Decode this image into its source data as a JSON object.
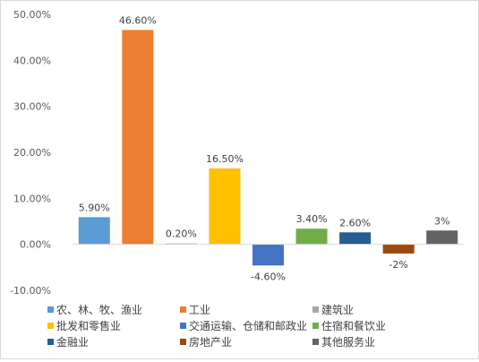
{
  "chart_data": {
    "type": "bar",
    "categories": [
      "农、林、牧、渔业",
      "工业",
      "建筑业",
      "批发和零售业",
      "交通运输、仓储和邮政业",
      "住宿和餐饮业",
      "金融业",
      "房地产业",
      "其他服务业"
    ],
    "values": [
      5.9,
      46.6,
      0.2,
      16.5,
      -4.6,
      3.4,
      2.6,
      -2,
      3
    ],
    "data_labels": [
      "5.90%",
      "46.60%",
      "0.20%",
      "16.50%",
      "-4.60%",
      "3.40%",
      "2.60%",
      "-2%",
      "3%"
    ],
    "colors": [
      "#5b9bd5",
      "#ed7d31",
      "#a5a5a5",
      "#ffc000",
      "#4472c4",
      "#70ad47",
      "#255e91",
      "#9e480e",
      "#636363"
    ],
    "ylim": [
      -10,
      50
    ],
    "y_ticks": [
      50,
      40,
      30,
      20,
      10,
      0,
      -10
    ],
    "y_tick_labels": [
      "50.00%",
      "40.00%",
      "30.00%",
      "20.00%",
      "10.00%",
      "0.00%",
      "-10.00%"
    ],
    "grid": false,
    "legend_position": "bottom",
    "legend_columns": 3,
    "title": "",
    "xlabel": "",
    "ylabel": ""
  }
}
